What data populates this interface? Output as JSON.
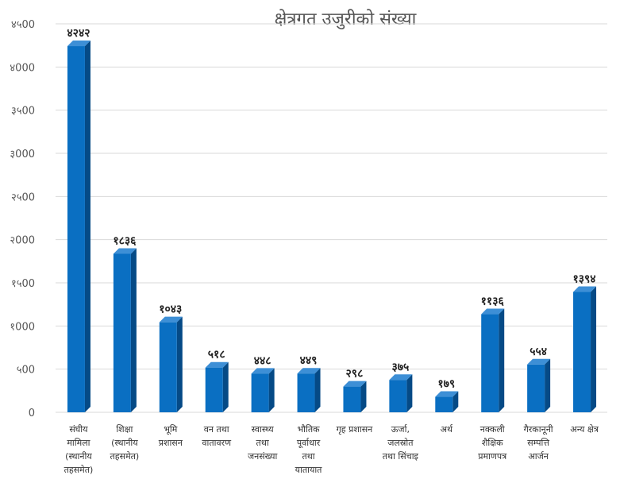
{
  "chart_data": {
    "type": "bar",
    "title": "क्षेत्रगत उजुरीको संख्या",
    "xlabel": "",
    "ylabel": "",
    "ylim": [
      0,
      4500
    ],
    "yticks": [
      {
        "value": 0,
        "label": "0"
      },
      {
        "value": 500,
        "label": "५00"
      },
      {
        "value": 1000,
        "label": "१000"
      },
      {
        "value": 1500,
        "label": "१५00"
      },
      {
        "value": 2000,
        "label": "२000"
      },
      {
        "value": 2500,
        "label": "२५00"
      },
      {
        "value": 3000,
        "label": "३000"
      },
      {
        "value": 3500,
        "label": "३५00"
      },
      {
        "value": 4000,
        "label": "४000"
      },
      {
        "value": 4500,
        "label": "४५00"
      }
    ],
    "categories": [
      [
        "संघीय",
        "मामिला",
        "(स्थानीय",
        "तहसमेत)"
      ],
      [
        "शिक्षा",
        "(स्थानीय",
        "तहसमेत)"
      ],
      [
        "भूमि",
        "प्रशासन"
      ],
      [
        "वन तथा",
        "वातावरण"
      ],
      [
        "स्वास्थ्य",
        "तथा",
        "जनसंख्या"
      ],
      [
        "भौतिक",
        "पूर्वाधार",
        "तथा",
        "यातायात"
      ],
      [
        "गृह प्रशासन"
      ],
      [
        "ऊर्जा,",
        "जलस्रोत",
        "तथा सिंचाइ"
      ],
      [
        "अर्थ"
      ],
      [
        "नक्कली",
        "शैक्षिक",
        "प्रमाणपत्र"
      ],
      [
        "गैरकानूनी",
        "सम्पत्ति",
        "आर्जन"
      ],
      [
        "अन्य क्षेत्र"
      ]
    ],
    "values": [
      4242,
      1836,
      1043,
      518,
      448,
      449,
      298,
      375,
      179,
      1136,
      554,
      1394
    ],
    "value_labels": [
      "४२४२",
      "१८३६",
      "१०४३",
      "५१८",
      "४४८",
      "४४९",
      "२९८",
      "३७५",
      "१७९",
      "११३६",
      "५५४",
      "१३९४"
    ],
    "grid": true,
    "legend": "none",
    "colors": {
      "bar_front": "#0a6fc2",
      "bar_side": "#054a86",
      "bar_top": "#3d8fd6"
    }
  }
}
